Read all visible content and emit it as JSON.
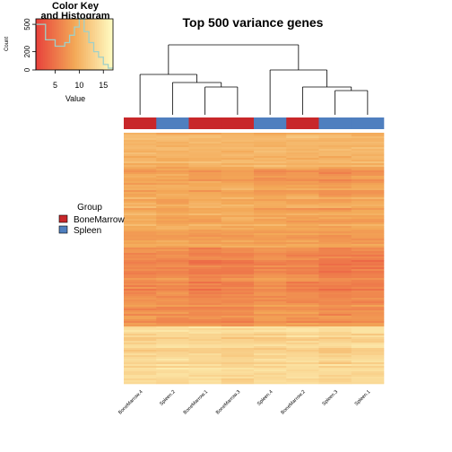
{
  "chart_data": {
    "type": "heatmap",
    "title": "Top 500 variance genes",
    "columns": [
      "BoneMarrow.4",
      "Spleen.2",
      "BoneMarrow.1",
      "BoneMarrow.3",
      "Spleen.4",
      "BoneMarrow.2",
      "Spleen.3",
      "Spleen.1"
    ],
    "column_groups": [
      "BoneMarrow",
      "Spleen",
      "BoneMarrow",
      "BoneMarrow",
      "Spleen",
      "BoneMarrow",
      "Spleen",
      "Spleen"
    ],
    "row_count": 500,
    "row_blocks": [
      {
        "rows": 30,
        "values": [
          10.5,
          10.2,
          10.3,
          10.6,
          10.0,
          10.8,
          10.4,
          10.1
        ]
      },
      {
        "rows": 40,
        "values": [
          9.8,
          9.5,
          9.9,
          9.6,
          10.2,
          9.7,
          9.4,
          9.8
        ]
      },
      {
        "rows": 60,
        "values": [
          8.8,
          9.0,
          8.6,
          8.9,
          7.8,
          8.2,
          7.6,
          8.0
        ]
      },
      {
        "rows": 55,
        "values": [
          9.5,
          8.6,
          9.2,
          9.4,
          9.0,
          8.7,
          8.5,
          8.9
        ]
      },
      {
        "rows": 45,
        "values": [
          8.4,
          8.8,
          8.2,
          8.5,
          8.7,
          8.3,
          8.1,
          8.4
        ]
      },
      {
        "rows": 110,
        "values": [
          6.5,
          6.8,
          5.9,
          6.1,
          6.9,
          6.4,
          5.8,
          6.0
        ]
      },
      {
        "rows": 45,
        "values": [
          7.8,
          7.2,
          6.9,
          7.0,
          8.0,
          7.5,
          7.1,
          7.4
        ]
      },
      {
        "rows": 115,
        "values": [
          13.2,
          13.6,
          13.4,
          13.0,
          13.3,
          13.5,
          13.1,
          13.4
        ]
      }
    ],
    "value_range": [
      1,
      17
    ],
    "color_scale": {
      "low": "#e8413b",
      "mid": "#f3a857",
      "high": "#fffdc4"
    },
    "group_colors": {
      "BoneMarrow": "#c8272a",
      "Spleen": "#4f7fbf"
    },
    "dendrogram_order": [
      "BoneMarrow.4",
      "Spleen.2",
      "BoneMarrow.1",
      "BoneMarrow.3",
      "Spleen.4",
      "BoneMarrow.2",
      "Spleen.3",
      "Spleen.1"
    ]
  },
  "color_key": {
    "title_line1": "Color Key",
    "title_line2": "and Histogram",
    "xlabel": "Value",
    "ylabel": "Count",
    "xticks": [
      5,
      10,
      15
    ],
    "xrange": [
      1,
      17
    ],
    "yticks": [
      0,
      200,
      500
    ],
    "yrange": [
      0,
      560
    ],
    "histogram": [
      {
        "x": 1,
        "count": 500
      },
      {
        "x": 3,
        "count": 330
      },
      {
        "x": 5,
        "count": 260
      },
      {
        "x": 7,
        "count": 300
      },
      {
        "x": 8,
        "count": 380
      },
      {
        "x": 9,
        "count": 470
      },
      {
        "x": 10,
        "count": 560
      },
      {
        "x": 11,
        "count": 420
      },
      {
        "x": 12,
        "count": 300
      },
      {
        "x": 13,
        "count": 200
      },
      {
        "x": 14,
        "count": 140
      },
      {
        "x": 15,
        "count": 60
      },
      {
        "x": 16,
        "count": 20
      }
    ]
  },
  "legend": {
    "title": "Group",
    "items": [
      {
        "label": "BoneMarrow",
        "color": "#c8272a"
      },
      {
        "label": "Spleen",
        "color": "#4f7fbf"
      }
    ]
  }
}
